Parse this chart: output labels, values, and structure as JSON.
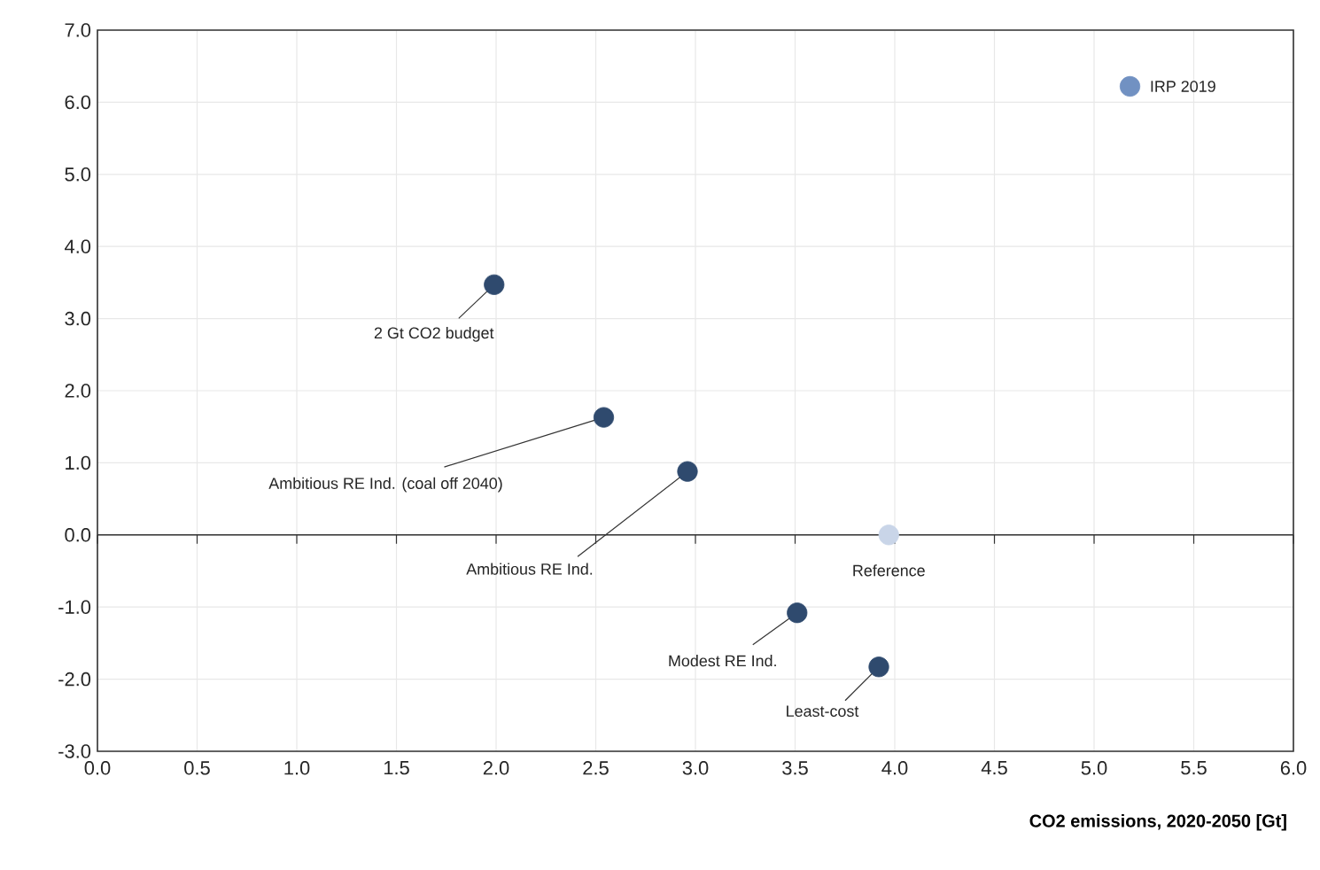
{
  "chart_data": {
    "type": "scatter",
    "xlabel": "CO2 emissions, 2020-2050 [Gt]",
    "x": [
      5.18,
      1.99,
      2.54,
      2.96,
      3.97,
      3.51,
      3.92
    ],
    "values": [
      6.22,
      3.47,
      1.63,
      0.88,
      0.0,
      -1.08,
      -1.83
    ],
    "colors": [
      "#7191c2",
      "#2f4a6e",
      "#2f4a6e",
      "#2f4a6e",
      "#c9d5e8",
      "#2f4a6e",
      "#2f4a6e"
    ],
    "annotations": [
      {
        "text": "IRP 2019",
        "x": 5.18,
        "y": 6.22
      },
      {
        "text": "2 Gt CO2 budget",
        "x": 1.99,
        "y": 3.47
      },
      {
        "text": "Ambitious RE Ind. (coal off 2040)",
        "x": 2.54,
        "y": 1.63
      },
      {
        "text": "Ambitious RE Ind.",
        "x": 2.96,
        "y": 0.88
      },
      {
        "text": "Reference",
        "x": 3.97,
        "y": 0.0
      },
      {
        "text": "Modest RE Ind.",
        "x": 3.51,
        "y": -1.08
      },
      {
        "text": "Least-cost",
        "x": 3.92,
        "y": -1.83
      }
    ],
    "xlim": [
      0,
      6
    ],
    "ylim": [
      -3,
      7
    ],
    "xticks": [
      {
        "value": 0,
        "label": "0.0"
      },
      {
        "value": 0.5,
        "label": "0.5"
      },
      {
        "value": 1,
        "label": "1.0"
      },
      {
        "value": 1.5,
        "label": "1.5"
      },
      {
        "value": 2,
        "label": "2.0"
      },
      {
        "value": 2.5,
        "label": "2.5"
      },
      {
        "value": 3,
        "label": "3.0"
      },
      {
        "value": 3.5,
        "label": "3.5"
      },
      {
        "value": 4,
        "label": "4.0"
      },
      {
        "value": 4.5,
        "label": "4.5"
      },
      {
        "value": 5,
        "label": "5.0"
      },
      {
        "value": 5.5,
        "label": "5.5"
      },
      {
        "value": 6,
        "label": "6.0"
      }
    ],
    "yticks": [
      {
        "value": -3,
        "label": "-3.0"
      },
      {
        "value": -2,
        "label": "-2.0"
      },
      {
        "value": -1,
        "label": "-1.0"
      },
      {
        "value": 0,
        "label": "0.0"
      },
      {
        "value": 1,
        "label": "1.0"
      },
      {
        "value": 2,
        "label": "2.0"
      },
      {
        "value": 3,
        "label": "3.0"
      },
      {
        "value": 4,
        "label": "4.0"
      },
      {
        "value": 5,
        "label": "5.0"
      },
      {
        "value": 6,
        "label": "6.0"
      },
      {
        "value": 7,
        "label": "7.0"
      }
    ],
    "grid": true,
    "marker": "circle"
  }
}
